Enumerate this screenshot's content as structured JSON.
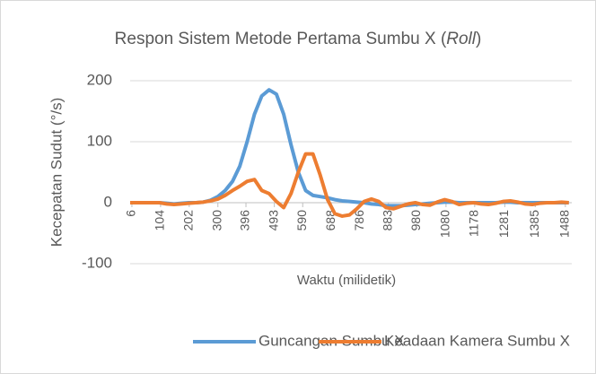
{
  "chart_data": {
    "type": "line",
    "title": [
      "Respon Sistem Metode Pertama Sumbu X (",
      "Roll",
      ")"
    ],
    "x_label": "Waktu (milidetik)",
    "y_label": "Kecepatan Sudut (°/s)",
    "x": [
      0,
      25,
      50,
      75,
      100,
      125,
      150,
      175,
      200,
      225,
      250,
      275,
      300,
      325,
      350,
      375,
      400,
      425,
      450,
      475,
      500,
      525,
      550,
      575,
      600,
      625,
      650,
      675,
      700,
      725,
      750,
      775,
      800,
      825,
      850,
      875,
      900,
      925,
      950,
      975,
      1000,
      1025,
      1050,
      1075,
      1100,
      1125,
      1150,
      1175,
      1200,
      1225,
      1250,
      1275,
      1300,
      1325,
      1350,
      1375,
      1400,
      1425,
      1450,
      1475,
      1500
    ],
    "series": [
      {
        "name": "Guncangan Sumbu X",
        "color": "#5b9bd5",
        "values": [
          0,
          0,
          0,
          0,
          0,
          -1,
          -2,
          -1,
          0,
          0,
          1,
          4,
          10,
          20,
          35,
          60,
          100,
          145,
          175,
          185,
          178,
          145,
          95,
          50,
          20,
          12,
          10,
          8,
          5,
          3,
          2,
          1,
          0,
          -2,
          -3,
          -5,
          -5,
          -5,
          -4,
          -3,
          -2,
          -1,
          0,
          1,
          1,
          0,
          0,
          0,
          0,
          0,
          0,
          1,
          1,
          0,
          0,
          0,
          0,
          0,
          0,
          0,
          0
        ]
      },
      {
        "name": "Keadaan Kamera Sumbu X",
        "color": "#ed7d31",
        "values": [
          0,
          0,
          0,
          0,
          0,
          -2,
          -3,
          -2,
          -1,
          0,
          1,
          3,
          6,
          12,
          20,
          27,
          35,
          38,
          20,
          15,
          2,
          -8,
          15,
          50,
          80,
          80,
          45,
          5,
          -18,
          -22,
          -20,
          -10,
          2,
          6,
          2,
          -8,
          -10,
          -6,
          -2,
          0,
          -3,
          -4,
          1,
          5,
          2,
          -3,
          -1,
          0,
          -2,
          -3,
          -1,
          2,
          3,
          1,
          -2,
          -3,
          -1,
          0,
          0,
          1,
          0
        ]
      }
    ],
    "xlim": [
      0,
      1510
    ],
    "xticks": [
      6,
      104,
      202,
      300,
      396,
      493,
      590,
      688,
      786,
      883,
      980,
      1080,
      1178,
      1281,
      1385,
      1488
    ],
    "ylim": [
      -100,
      200
    ],
    "yticks": [
      -100,
      0,
      100,
      200
    ],
    "grid": true,
    "legend": "bottom"
  }
}
